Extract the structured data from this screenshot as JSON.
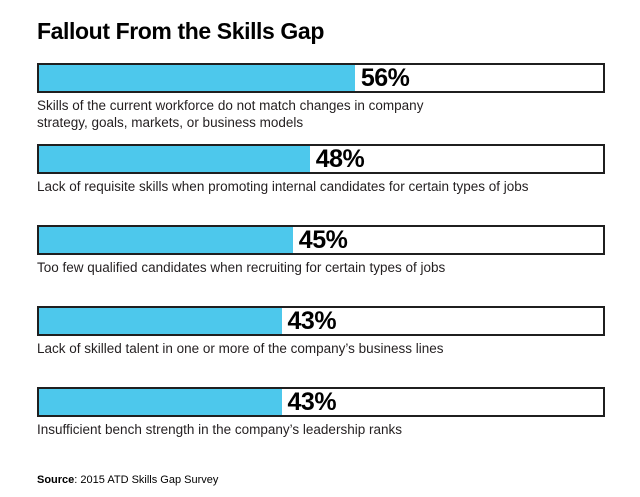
{
  "title": "Fallout From the Skills Gap",
  "source": {
    "prefix": "Source",
    "text": ": 2015 ATD Skills Gap Survey"
  },
  "colors": {
    "bar_fill": "#4DC8EC",
    "bar_border": "#1F1F1F",
    "label_text": "#000000",
    "body_text": "#231F20"
  },
  "chart_data": {
    "type": "bar",
    "orientation": "horizontal",
    "title": "Fallout From the Skills Gap",
    "xlim": [
      0,
      100
    ],
    "grid": false,
    "legend": false,
    "categories": [
      "Skills of the current workforce do not match changes in company\nstrategy, goals, markets, or business models",
      "Lack of requisite skills when promoting internal candidates for certain types of jobs",
      "Too few qualified candidates when recruiting for certain types of jobs",
      "Lack of skilled talent in one or more of the company’s business lines",
      "Insufficient bench strength in the company’s leadership ranks"
    ],
    "values": [
      56,
      48,
      45,
      43,
      43
    ],
    "data_labels": [
      "56%",
      "48%",
      "45%",
      "43%",
      "43%"
    ],
    "source": "Source: 2015 ATD Skills Gap Survey"
  }
}
